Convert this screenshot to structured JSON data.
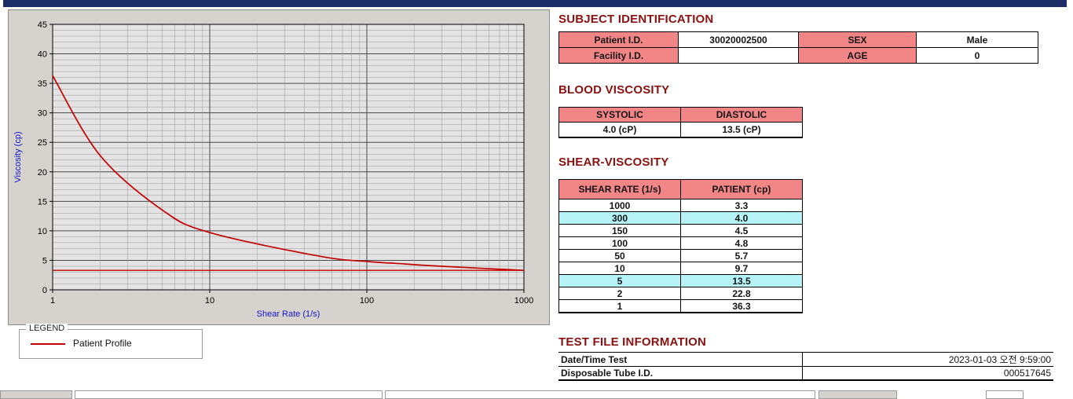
{
  "headings": {
    "subject": "SUBJECT IDENTIFICATION",
    "blood": "BLOOD VISCOSITY",
    "shear": "SHEAR-VISCOSITY",
    "test_file": "TEST FILE INFORMATION"
  },
  "subject_identification": {
    "patient_id_label": "Patient I.D.",
    "patient_id": "30020002500",
    "sex_label": "SEX",
    "sex": "Male",
    "facility_id_label": "Facility I.D.",
    "facility_id": "",
    "age_label": "AGE",
    "age": "0"
  },
  "blood_viscosity": {
    "systolic_label": "SYSTOLIC",
    "diastolic_label": "DIASTOLIC",
    "systolic_value": "4.0 (cP)",
    "diastolic_value": "13.5 (cP)"
  },
  "shear_viscosity": {
    "headers": {
      "rate": "SHEAR RATE (1/s)",
      "patient": "PATIENT (cp)"
    },
    "rows": [
      {
        "rate": "1000",
        "value": "3.3",
        "highlight": false
      },
      {
        "rate": "300",
        "value": "4.0",
        "highlight": true
      },
      {
        "rate": "150",
        "value": "4.5",
        "highlight": false
      },
      {
        "rate": "100",
        "value": "4.8",
        "highlight": false
      },
      {
        "rate": "50",
        "value": "5.7",
        "highlight": false
      },
      {
        "rate": "10",
        "value": "9.7",
        "highlight": false
      },
      {
        "rate": "5",
        "value": "13.5",
        "highlight": true
      },
      {
        "rate": "2",
        "value": "22.8",
        "highlight": false
      },
      {
        "rate": "1",
        "value": "36.3",
        "highlight": false
      }
    ]
  },
  "test_file": {
    "date_label": "Date/Time Test",
    "date_value": "2023-01-03  오전 9:59:00",
    "tube_label": "Disposable Tube I.D.",
    "tube_value": "000517645"
  },
  "legend": {
    "box_label": "LEGEND",
    "series_label": "Patient Profile"
  },
  "colors": {
    "heading": "#8b1010",
    "table_header_bg": "#f28686",
    "row_highlight_bg": "#b5f3f6",
    "series_line": "#c40000",
    "axis_label": "#1515c8",
    "topbar": "#1d2d66"
  },
  "chart_data": {
    "type": "line",
    "title": "",
    "xlabel": "Shear Rate (1/s)",
    "ylabel": "Viscosity (cp)",
    "x_scale": "log",
    "xlim": [
      1,
      1000
    ],
    "ylim": [
      0,
      45
    ],
    "y_major_ticks": [
      0,
      5,
      10,
      15,
      20,
      25,
      30,
      35,
      40,
      45
    ],
    "x_ticks": [
      1,
      10,
      100,
      1000
    ],
    "grid": "on",
    "legend_position": "below-left",
    "series": [
      {
        "name": "Patient Profile",
        "color": "#c40000",
        "x": [
          1,
          2,
          5,
          10,
          50,
          100,
          150,
          300,
          1000
        ],
        "y": [
          36.3,
          22.8,
          13.5,
          9.7,
          5.7,
          4.8,
          4.5,
          4.0,
          3.3
        ]
      }
    ],
    "baseline": {
      "y": 3.3,
      "color": "#c40000"
    }
  }
}
